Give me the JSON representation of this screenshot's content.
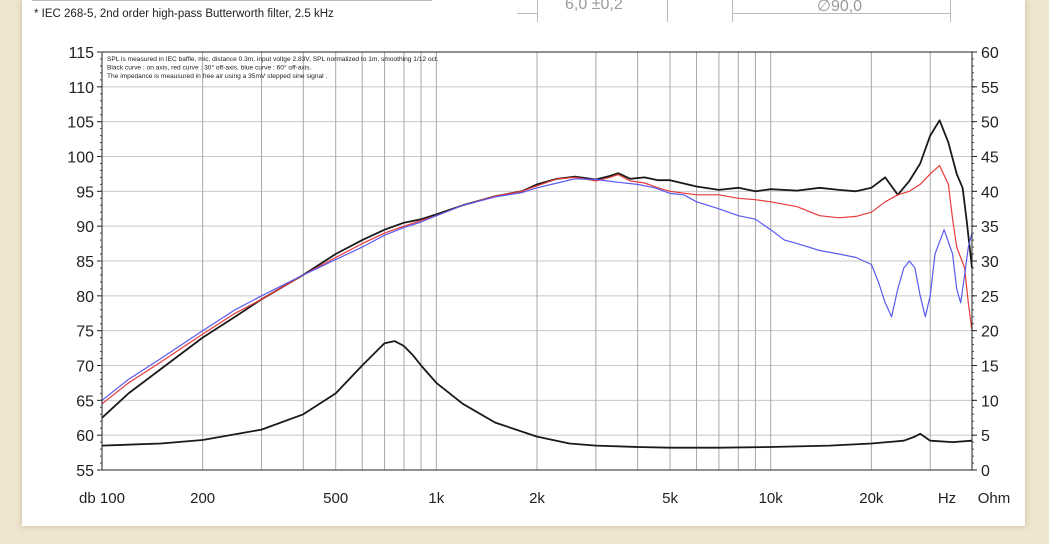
{
  "header": {
    "footnote": "* IEC 268-5, 2nd order high-pass Butterworth filter, 2.5 kHz",
    "dim_thickness": "6,0 ±0,2",
    "dim_diameter": "∅90,0"
  },
  "chart_data": {
    "type": "line",
    "xscale": "log",
    "xlim": [
      100,
      40000
    ],
    "ylim": [
      55,
      115
    ],
    "y2lim": [
      0,
      60
    ],
    "grid": true,
    "x_ticks": [
      {
        "value": 100,
        "label": "db 100"
      },
      {
        "value": 200,
        "label": "200"
      },
      {
        "value": 500,
        "label": "500"
      },
      {
        "value": 1000,
        "label": "1k"
      },
      {
        "value": 2000,
        "label": "2k"
      },
      {
        "value": 5000,
        "label": "5k"
      },
      {
        "value": 10000,
        "label": "10k"
      },
      {
        "value": 20000,
        "label": "20k"
      }
    ],
    "x_unit_label": "Hz",
    "y2_unit_label": "Ohm",
    "y_ticks": [
      55,
      60,
      65,
      70,
      75,
      80,
      85,
      90,
      95,
      100,
      105,
      110,
      115
    ],
    "y2_ticks": [
      0,
      5,
      10,
      15,
      20,
      25,
      30,
      35,
      40,
      45,
      50,
      55,
      60
    ],
    "annotations": [
      "SPL is measured in IEC baffle, mic. distance 0.3m, input voltge 2.83V, SPL normalized to 1m, smoothing 1/12 oct.",
      "Black curve : on axis, red curve : 30° off-axis, blue curve : 60° off-axis.",
      "The impedance is meausured in free air using a 35mV stepped sine signal ."
    ],
    "series": [
      {
        "id": "on_axis",
        "axis": "left",
        "color": "#1a1a1a",
        "x": [
          100,
          120,
          150,
          200,
          250,
          300,
          400,
          500,
          600,
          700,
          800,
          900,
          1000,
          1200,
          1500,
          1800,
          2000,
          2300,
          2600,
          3000,
          3300,
          3500,
          3800,
          4200,
          4600,
          5000,
          6000,
          7000,
          8000,
          9000,
          10000,
          12000,
          14000,
          16000,
          18000,
          20000,
          22000,
          24000,
          26000,
          28000,
          30000,
          32000,
          34000,
          36000,
          37500,
          38500,
          40000
        ],
        "y": [
          62.5,
          66,
          69.5,
          74,
          77,
          79.5,
          83,
          86,
          88,
          89.5,
          90.5,
          91,
          91.7,
          93,
          94.3,
          95,
          96,
          96.8,
          97.1,
          96.7,
          97.2,
          97.6,
          96.8,
          97,
          96.6,
          96.6,
          95.7,
          95.2,
          95.5,
          95,
          95.3,
          95.1,
          95.5,
          95.2,
          95,
          95.5,
          97,
          94.5,
          96.5,
          99,
          103,
          105.2,
          102,
          97.5,
          95.5,
          91,
          84
        ]
      },
      {
        "id": "off_axis_30",
        "axis": "left",
        "color": "#e83a3a",
        "x": [
          100,
          120,
          150,
          200,
          250,
          300,
          400,
          500,
          600,
          700,
          800,
          900,
          1000,
          1200,
          1500,
          1800,
          2000,
          2300,
          2600,
          3000,
          3300,
          3500,
          3800,
          4200,
          4600,
          5000,
          6000,
          7000,
          8000,
          9000,
          10000,
          12000,
          14000,
          16000,
          18000,
          20000,
          22000,
          24000,
          26000,
          28000,
          30000,
          32000,
          34000,
          35000,
          36000,
          37000,
          38000,
          39000,
          40000
        ],
        "y": [
          64.5,
          67.5,
          70.5,
          74.5,
          77.5,
          79.5,
          83,
          85.5,
          87.5,
          89,
          90,
          90.8,
          91.5,
          93,
          94.3,
          95,
          95.8,
          96.8,
          97,
          96.5,
          97,
          97.4,
          96.5,
          96.2,
          95.5,
          95,
          94.5,
          94.5,
          94,
          93.8,
          93.5,
          92.8,
          91.5,
          91.2,
          91.4,
          92,
          93.5,
          94.5,
          95,
          96,
          97.5,
          98.7,
          96,
          91,
          87,
          85.5,
          84,
          79,
          75
        ]
      },
      {
        "id": "off_axis_60",
        "axis": "left",
        "color": "#5a5af0",
        "x": [
          100,
          120,
          150,
          200,
          250,
          300,
          400,
          500,
          600,
          700,
          800,
          900,
          1000,
          1200,
          1500,
          1800,
          2000,
          2300,
          2600,
          3000,
          3500,
          4000,
          4500,
          5000,
          5500,
          6000,
          7000,
          8000,
          9000,
          10000,
          11000,
          12000,
          14000,
          16000,
          18000,
          20000,
          21000,
          22000,
          23000,
          24000,
          25000,
          26000,
          27000,
          28000,
          29000,
          30000,
          31000,
          33000,
          35000,
          36000,
          37000,
          38000,
          39000,
          40000
        ],
        "y": [
          65,
          68,
          71,
          75,
          78,
          80,
          83,
          85.2,
          87,
          88.7,
          89.8,
          90.6,
          91.5,
          93,
          94.2,
          94.8,
          95.5,
          96.2,
          96.8,
          96.7,
          96.3,
          96,
          95.5,
          94.7,
          94.5,
          93.5,
          92.5,
          91.5,
          91,
          89.5,
          88,
          87.5,
          86.5,
          86,
          85.5,
          84.5,
          82,
          79,
          77,
          81,
          84,
          85,
          84,
          80,
          77,
          80,
          86,
          89.5,
          86,
          81,
          79,
          83,
          87,
          89
        ]
      },
      {
        "id": "impedance",
        "axis": "right",
        "color": "#1a1a1a",
        "x": [
          100,
          150,
          200,
          300,
          400,
          500,
          600,
          700,
          750,
          800,
          850,
          900,
          1000,
          1200,
          1500,
          2000,
          2500,
          3000,
          4000,
          5000,
          7000,
          10000,
          15000,
          20000,
          25000,
          27000,
          28000,
          30000,
          35000,
          40000
        ],
        "y": [
          3.5,
          3.8,
          4.3,
          5.8,
          8,
          11,
          15,
          18.2,
          18.5,
          17.8,
          16.5,
          15,
          12.5,
          9.5,
          6.8,
          4.8,
          3.8,
          3.5,
          3.3,
          3.2,
          3.2,
          3.3,
          3.5,
          3.8,
          4.2,
          4.8,
          5.2,
          4.2,
          4,
          4.2
        ]
      }
    ]
  }
}
